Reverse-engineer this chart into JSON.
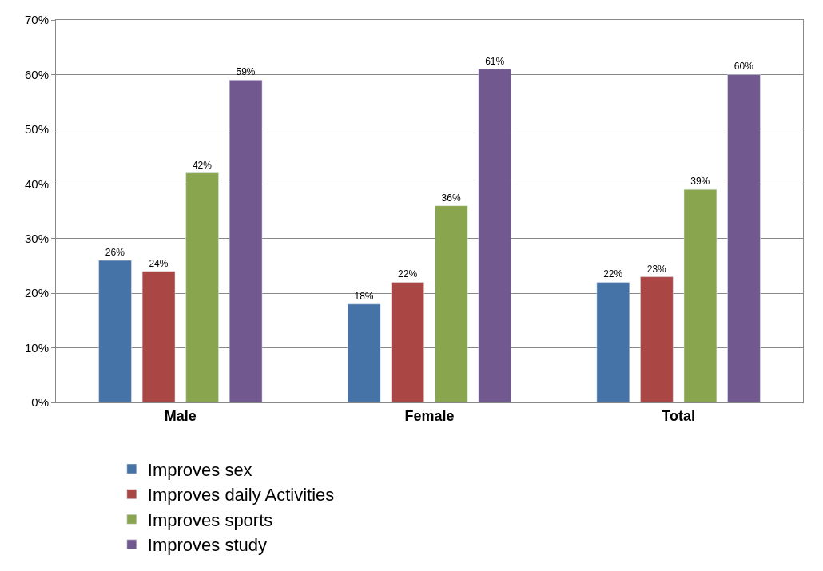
{
  "chart_data": {
    "type": "bar",
    "categories": [
      "Male",
      "Female",
      "Total"
    ],
    "series": [
      {
        "name": "Improves sex",
        "color": "#4572a7",
        "values": [
          26,
          18,
          22
        ],
        "value_labels": [
          "26%",
          "18%",
          "22%"
        ]
      },
      {
        "name": "Improves daily Activities",
        "color": "#aa4643",
        "values": [
          24,
          22,
          23
        ],
        "value_labels": [
          "24%",
          "22%",
          "23%"
        ]
      },
      {
        "name": "Improves sports",
        "color": "#89a54e",
        "values": [
          42,
          36,
          39
        ],
        "value_labels": [
          "42%",
          "36%",
          "39%"
        ]
      },
      {
        "name": "Improves study",
        "color": "#71588f",
        "values": [
          59,
          61,
          60
        ],
        "value_labels": [
          "59%",
          "61%",
          "60%"
        ]
      }
    ],
    "ylim": [
      0,
      70
    ],
    "yticks": [
      {
        "value": 0,
        "label": "0%"
      },
      {
        "value": 10,
        "label": "10%"
      },
      {
        "value": 20,
        "label": "20%"
      },
      {
        "value": 30,
        "label": "30%"
      },
      {
        "value": 40,
        "label": "40%"
      },
      {
        "value": 50,
        "label": "50%"
      },
      {
        "value": 60,
        "label": "60%"
      },
      {
        "value": 70,
        "label": "70%"
      }
    ],
    "grid": "y",
    "legend": "bottom"
  }
}
